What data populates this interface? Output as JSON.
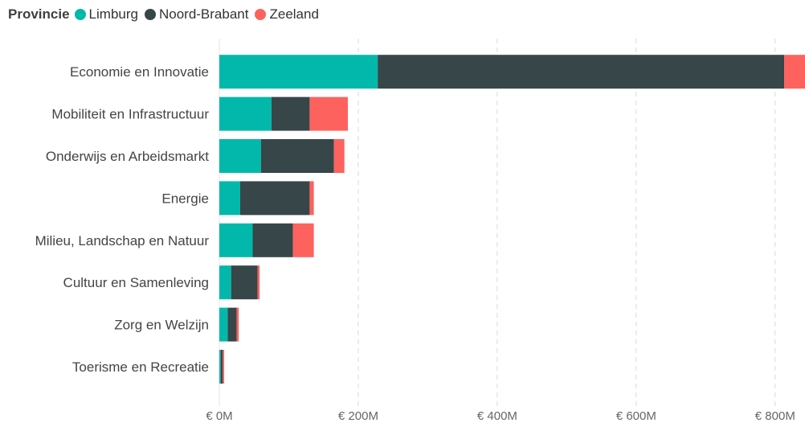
{
  "chart_data": {
    "type": "bar",
    "orientation": "horizontal",
    "stacked": true,
    "legend_title": "Provincie",
    "legend_position": "top-left",
    "categories": [
      "Economie en Innovatie",
      "Mobiliteit en Infrastructuur",
      "Onderwijs en Arbeidsmarkt",
      "Energie",
      "Milieu, Landschap en Natuur",
      "Cultuur en Samenleving",
      "Zorg en Welzijn",
      "Toerisme en Recreatie"
    ],
    "series": [
      {
        "name": "Limburg",
        "color": "#01B8AA",
        "values": [
          228,
          75,
          60,
          30,
          48,
          17,
          12,
          2
        ]
      },
      {
        "name": "Noord-Brabant",
        "color": "#374649",
        "values": [
          585,
          55,
          105,
          100,
          58,
          38,
          13,
          3
        ]
      },
      {
        "name": "Zeeland",
        "color": "#FD625E",
        "values": [
          30,
          55,
          15,
          6,
          30,
          3,
          3,
          2
        ]
      }
    ],
    "xlim": [
      0,
      843
    ],
    "xticks": [
      0,
      200,
      400,
      600,
      800
    ],
    "xtick_labels": [
      "€ 0M",
      "€ 200M",
      "€ 400M",
      "€ 600M",
      "€ 800M"
    ],
    "grid": true,
    "title": "",
    "xlabel": "",
    "ylabel": ""
  }
}
